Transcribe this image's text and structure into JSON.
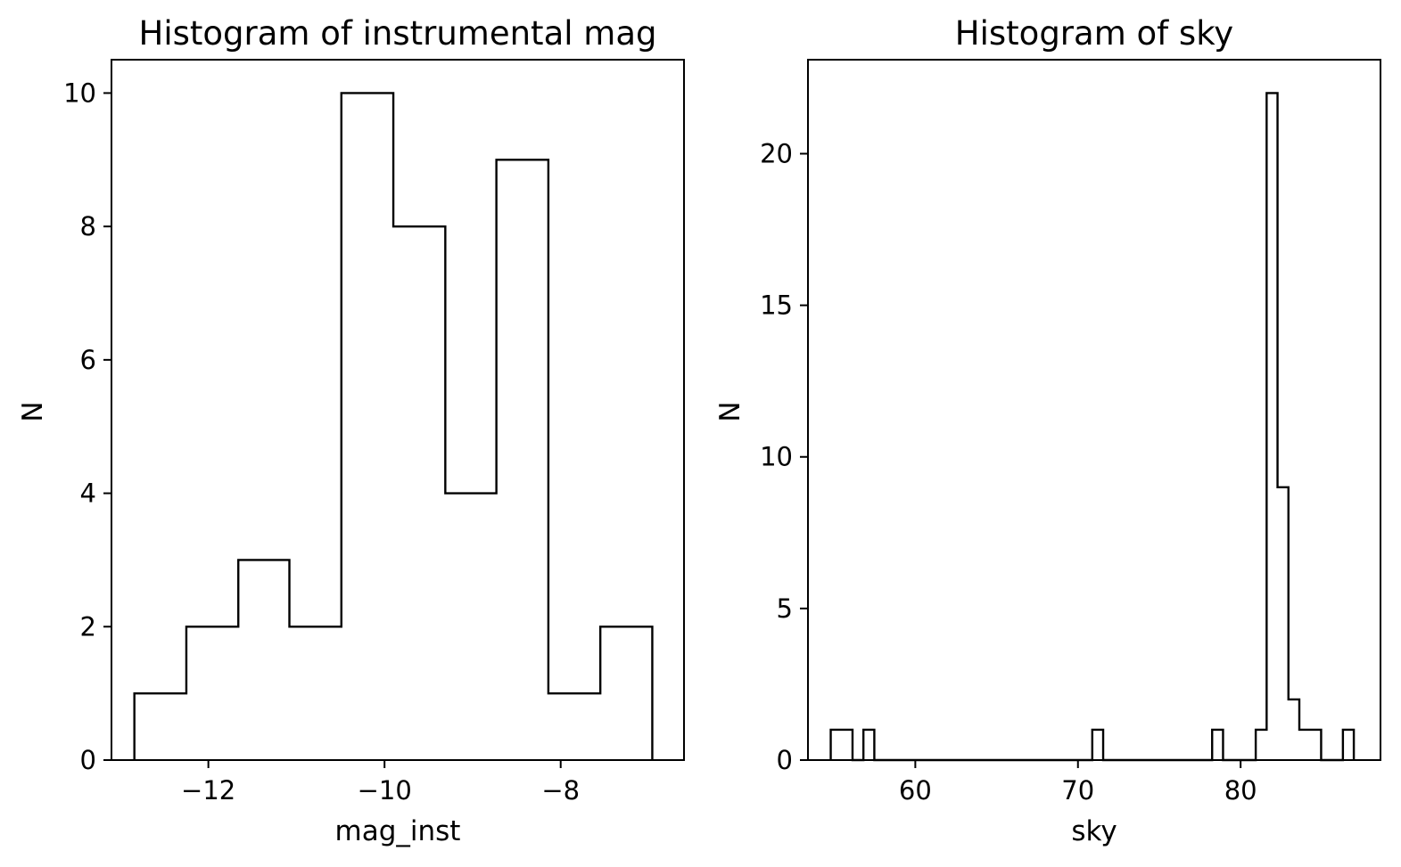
{
  "chart_data": [
    {
      "type": "histogram",
      "style": "step",
      "title": "Histogram of instrumental mag",
      "xlabel": "mag_inst",
      "ylabel": "N",
      "xlim": [
        -13.1,
        -6.6
      ],
      "ylim": [
        0,
        10.5
      ],
      "xticks": [
        -12,
        -10,
        -8
      ],
      "xtick_labels": [
        "−12",
        "−10",
        "−8"
      ],
      "yticks": [
        0,
        2,
        4,
        6,
        8,
        10
      ],
      "ytick_labels": [
        "0",
        "2",
        "4",
        "6",
        "8",
        "10"
      ],
      "bin_edges": [
        -12.84,
        -12.25,
        -11.66,
        -11.08,
        -10.49,
        -9.9,
        -9.31,
        -8.73,
        -8.14,
        -7.55,
        -6.96
      ],
      "counts": [
        1,
        2,
        3,
        2,
        10,
        8,
        4,
        9,
        1,
        2
      ],
      "grid": false,
      "legend": "none"
    },
    {
      "type": "histogram",
      "style": "step",
      "title": "Histogram of sky",
      "xlabel": "sky",
      "ylabel": "N",
      "xlim": [
        53.4,
        88.6
      ],
      "ylim": [
        0,
        23.1
      ],
      "xticks": [
        60,
        70,
        80
      ],
      "xtick_labels": [
        "60",
        "70",
        "80"
      ],
      "yticks": [
        0,
        5,
        10,
        15,
        20
      ],
      "ytick_labels": [
        "0",
        "5",
        "10",
        "15",
        "20"
      ],
      "bin_edges": [
        54.8,
        55.47,
        56.14,
        56.81,
        57.48,
        58.15,
        58.82,
        59.49,
        60.16,
        60.83,
        61.5,
        62.17,
        62.84,
        63.51,
        64.18,
        64.85,
        65.52,
        66.19,
        66.86,
        67.53,
        68.2,
        68.87,
        69.54,
        70.21,
        70.88,
        71.55,
        72.22,
        72.89,
        73.56,
        74.23,
        74.9,
        75.57,
        76.24,
        76.91,
        77.58,
        78.25,
        78.92,
        79.59,
        80.26,
        80.93,
        81.6,
        82.27,
        82.94,
        83.61,
        84.28,
        84.95,
        85.62,
        86.29,
        86.96
      ],
      "counts": [
        1,
        1,
        0,
        1,
        0,
        0,
        0,
        0,
        0,
        0,
        0,
        0,
        0,
        0,
        0,
        0,
        0,
        0,
        0,
        0,
        0,
        0,
        0,
        0,
        1,
        0,
        0,
        0,
        0,
        0,
        0,
        0,
        0,
        0,
        0,
        1,
        0,
        0,
        0,
        1,
        22,
        9,
        2,
        1,
        1,
        0,
        0,
        1
      ],
      "grid": false,
      "legend": "none"
    }
  ]
}
